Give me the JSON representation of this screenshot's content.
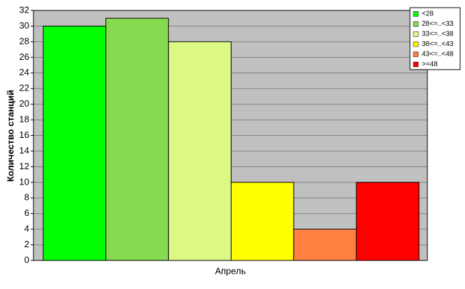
{
  "chart_data": {
    "type": "bar",
    "ylabel": "Количество станций",
    "categories": [
      "Апрель"
    ],
    "series": [
      {
        "name": "<28",
        "color": "#00ff00",
        "values": [
          30
        ]
      },
      {
        "name": "28<=..<33",
        "color": "#86da50",
        "values": [
          31
        ]
      },
      {
        "name": "33<=..<38",
        "color": "#ddf985",
        "values": [
          28
        ]
      },
      {
        "name": "38<=..<43",
        "color": "#ffff00",
        "values": [
          10
        ]
      },
      {
        "name": "43<=..<48",
        "color": "#ff8040",
        "values": [
          4
        ]
      },
      {
        "name": ">=48",
        "color": "#ff0000",
        "values": [
          10
        ]
      }
    ],
    "ylim": [
      0,
      32
    ],
    "yticks": [
      0,
      2,
      4,
      6,
      8,
      10,
      12,
      14,
      16,
      18,
      20,
      22,
      24,
      26,
      28,
      30,
      32
    ],
    "grid": true,
    "legend": "upper right"
  }
}
